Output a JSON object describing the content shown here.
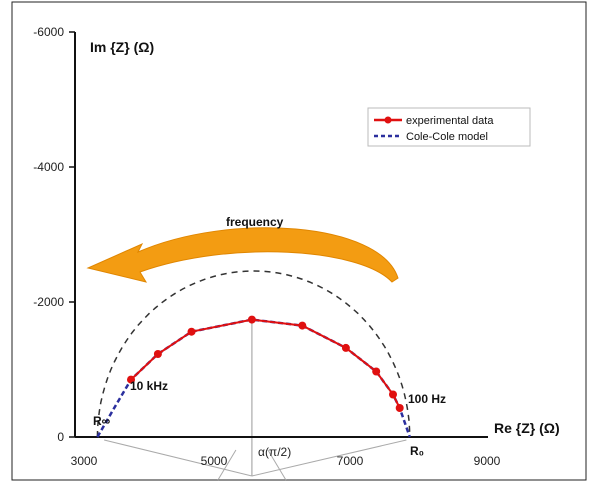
{
  "chart_data": {
    "type": "line",
    "xlabel": "Re {Z} (Ω)",
    "ylabel": "Im {Z} (Ω)",
    "xlim": [
      3000,
      9000
    ],
    "ylim": [
      0,
      -6000
    ],
    "x_ticks": [
      "3000",
      "5000",
      "7000",
      "9000"
    ],
    "y_ticks": [
      "-6000",
      "-4000",
      "-2000",
      "0"
    ],
    "legend": {
      "position": "top-right",
      "entries": [
        "experimental data",
        "Cole-Cole model"
      ]
    },
    "series": [
      {
        "name": "experimental data",
        "color": "#e01010",
        "x": [
          3700,
          4100,
          4600,
          5500,
          6250,
          6900,
          7350,
          7600,
          7700
        ],
        "y": [
          -850,
          -1230,
          -1560,
          -1740,
          -1650,
          -1320,
          -970,
          -630,
          -430
        ]
      },
      {
        "name": "Cole-Cole model",
        "color": "#2b2f9e",
        "x": [
          3200,
          3450,
          3700,
          4100,
          4600,
          5500,
          6250,
          6900,
          7350,
          7600,
          7700,
          7850
        ],
        "y": [
          0,
          -430,
          -850,
          -1230,
          -1560,
          -1740,
          -1650,
          -1320,
          -970,
          -630,
          -430,
          0
        ]
      }
    ],
    "reference_arc": {
      "x_start": 3200,
      "x_end": 7850,
      "peak": -2460,
      "style": "dashed"
    },
    "annotations": {
      "frequency_label": "frequency",
      "high_freq": "10 kHz",
      "low_freq": "100 Hz",
      "r_inf": "R∞",
      "r_zero": "R₀",
      "alpha": "α(π/2)"
    }
  }
}
